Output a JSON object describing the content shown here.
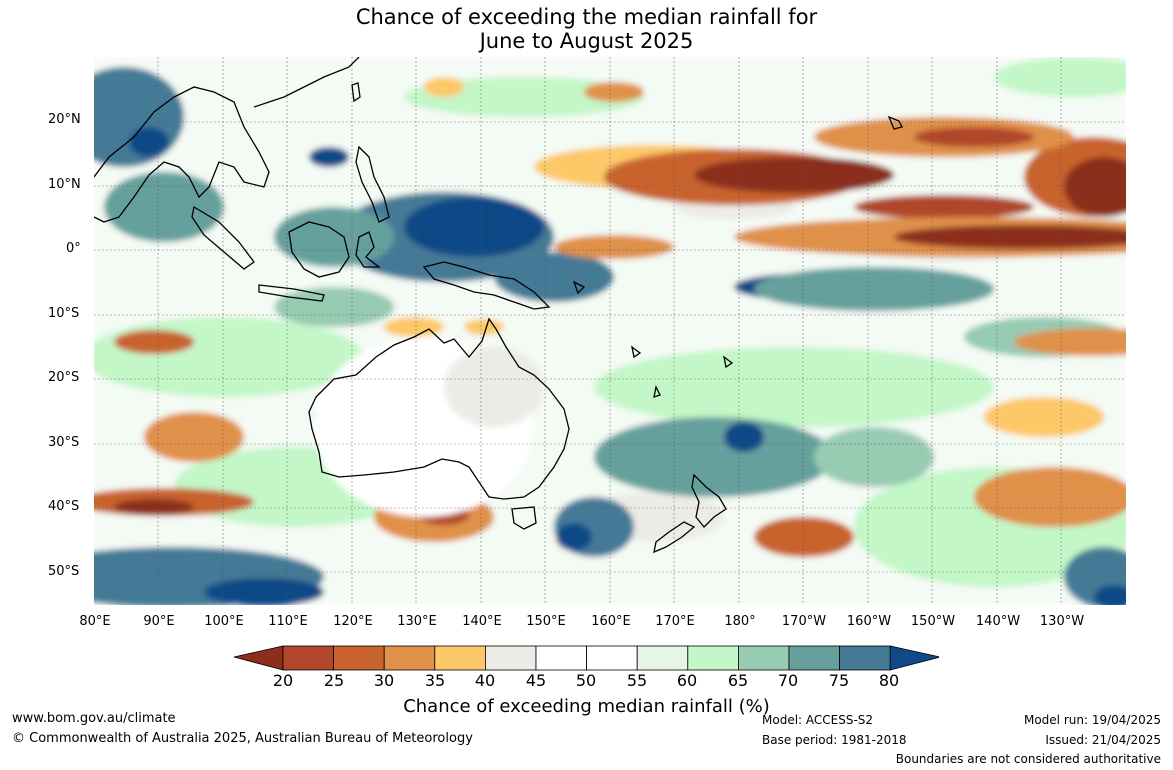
{
  "title_line1": "Chance of exceeding the median rainfall for",
  "title_line2": "June to August 2025",
  "lat_labels": [
    "20°N",
    "10°N",
    "0°",
    "10°S",
    "20°S",
    "30°S",
    "40°S",
    "50°S"
  ],
  "lon_labels": [
    "80°E",
    "90°E",
    "100°E",
    "110°E",
    "120°E",
    "130°E",
    "140°E",
    "150°E",
    "160°E",
    "170°E",
    "180°",
    "170°W",
    "160°W",
    "150°W",
    "140°W",
    "130°W"
  ],
  "colorbar": {
    "ticks": [
      "20",
      "25",
      "30",
      "35",
      "40",
      "45",
      "50",
      "55",
      "60",
      "65",
      "70",
      "75",
      "80"
    ],
    "colors": [
      "#8b2f1c",
      "#b0472a",
      "#c9632f",
      "#e0914a",
      "#fdc867",
      "#ecebe6",
      "#ffffff",
      "#ffffff",
      "#e6f6e6",
      "#c3f7c7",
      "#97cbb2",
      "#66a09d",
      "#457a97",
      "#0e4a87"
    ],
    "label": "Chance of exceeding median rainfall (%)"
  },
  "footer": {
    "website": "www.bom.gov.au/climate",
    "copyright": "© Commonwealth of Australia 2025, Australian Bureau of Meteorology",
    "model": "Model: ACCESS-S2",
    "base_period": "Base period: 1981-2018",
    "model_run": "Model run: 19/04/2025",
    "issued": "Issued: 21/04/2025",
    "disclaimer": "Boundaries are not considered authoritative"
  }
}
